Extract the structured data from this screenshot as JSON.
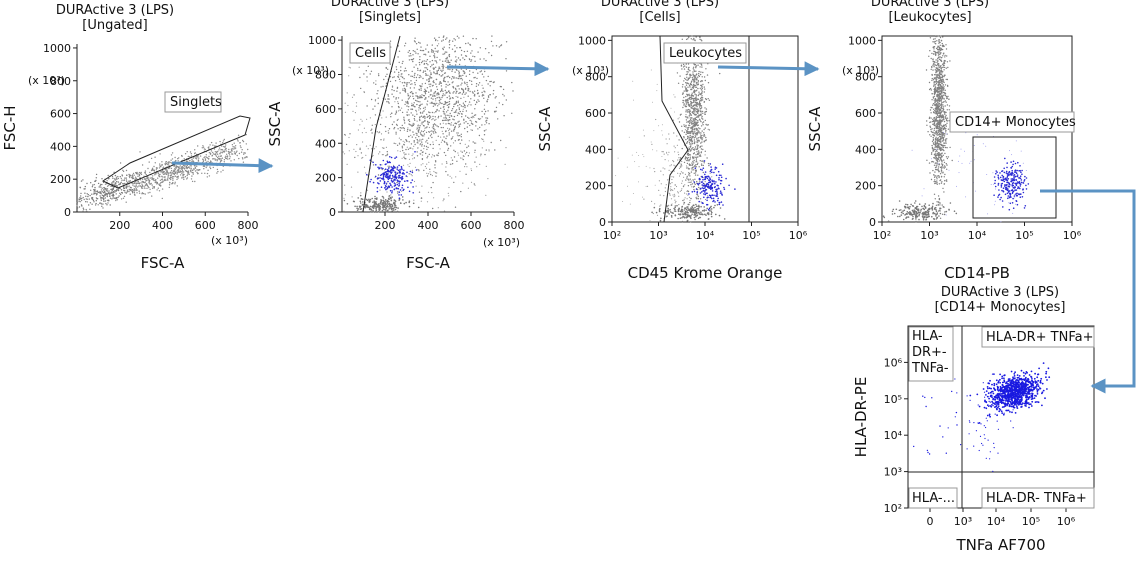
{
  "chart_data": [
    {
      "type": "scatter",
      "title": "DURActive 3 (LPS)",
      "subtitle": "[Ungated]",
      "xlabel": "FSC-A",
      "ylabel": "FSC-H",
      "x_scale": "linear",
      "y_scale": "linear",
      "xlim": [
        0,
        800
      ],
      "ylim": [
        0,
        1024
      ],
      "xticks": [
        "200",
        "400",
        "600",
        "800"
      ],
      "yticks": [
        "0",
        "200",
        "400",
        "600",
        "800",
        "1000"
      ],
      "x_multiplier": "(x 10³)",
      "y_multiplier": "(x 10³)",
      "gates": [
        {
          "label": "Singlets",
          "type": "polygon"
        }
      ],
      "clusters": [
        {
          "color": "#8a8a8a",
          "shape": "diagonal-band",
          "center": [
            380,
            280
          ]
        }
      ],
      "grid": false
    },
    {
      "type": "scatter",
      "title": "DURActive 3 (LPS)",
      "subtitle": "[Singlets]",
      "xlabel": "FSC-A",
      "ylabel": "SSC-A",
      "x_scale": "linear",
      "y_scale": "linear",
      "xlim": [
        0,
        800
      ],
      "ylim": [
        0,
        1024
      ],
      "xticks": [
        "200",
        "400",
        "600",
        "800"
      ],
      "yticks": [
        "0",
        "200",
        "400",
        "600",
        "800",
        "1000"
      ],
      "x_multiplier": "(x 10³)",
      "y_multiplier": "(x 10³)",
      "gates": [
        {
          "label": "Cells",
          "type": "polygon"
        }
      ],
      "clusters": [
        {
          "color": "#808080",
          "center": [
            450,
            600
          ]
        },
        {
          "color": "#2b2bd4",
          "center": [
            230,
            200
          ]
        },
        {
          "color": "#707070",
          "center": [
            260,
            50
          ]
        }
      ],
      "grid": false
    },
    {
      "type": "scatter",
      "title": "DURActive 3 (LPS)",
      "subtitle": "[Cells]",
      "xlabel": "CD45 Krome Orange",
      "ylabel": "SSC-A",
      "x_scale": "log",
      "y_scale": "linear",
      "xlim": [
        100,
        1000000
      ],
      "ylim": [
        0,
        1024
      ],
      "xticks": [
        "10²",
        "10³",
        "10⁴",
        "10⁵",
        "10⁶"
      ],
      "yticks": [
        "0",
        "200",
        "400",
        "600",
        "800",
        "1000"
      ],
      "y_multiplier": "(x 10³)",
      "gates": [
        {
          "label": "Leukocytes",
          "type": "polygon"
        }
      ],
      "clusters": [
        {
          "color": "#808080",
          "center": [
            5000,
            600
          ]
        },
        {
          "color": "#2b2bd4",
          "center": [
            13000,
            210
          ]
        },
        {
          "color": "#707070",
          "center": [
            3500,
            60
          ]
        }
      ],
      "grid": false
    },
    {
      "type": "scatter",
      "title": "DURActive 3 (LPS)",
      "subtitle": "[Leukocytes]",
      "xlabel": "CD14-PB",
      "ylabel": "SSC-A",
      "x_scale": "log",
      "y_scale": "linear",
      "xlim": [
        100,
        1000000
      ],
      "ylim": [
        0,
        1024
      ],
      "xticks": [
        "10²",
        "10³",
        "10⁴",
        "10⁵",
        "10⁶"
      ],
      "yticks": [
        "0",
        "200",
        "400",
        "600",
        "800",
        "1000"
      ],
      "y_multiplier": "(x 10³)",
      "gates": [
        {
          "label": "CD14+ Monocytes",
          "type": "rectangle"
        }
      ],
      "clusters": [
        {
          "color": "#808080",
          "center": [
            1200,
            650
          ]
        },
        {
          "color": "#2b2bd4",
          "center": [
            35000,
            210
          ]
        },
        {
          "color": "#808080",
          "center": [
            400,
            60
          ]
        }
      ],
      "grid": false
    },
    {
      "type": "scatter",
      "title": "DURActive 3 (LPS)",
      "subtitle": "[CD14+ Monocytes]",
      "xlabel": "TNFa AF700",
      "ylabel": "HLA-DR-PE",
      "x_scale": "biexponential",
      "y_scale": "log",
      "ylim": [
        100,
        10000000
      ],
      "xticks": [
        "0",
        "10³",
        "10⁴",
        "10⁵",
        "10⁶"
      ],
      "yticks": [
        "10²",
        "10³",
        "10⁴",
        "10⁵",
        "10⁶"
      ],
      "quadrants": [
        {
          "label": "HLA-DR+ TNFa-",
          "position": "top-left"
        },
        {
          "label": "HLA-DR+ TNFa+",
          "position": "top-right"
        },
        {
          "label": "HLA-...",
          "position": "bottom-left"
        },
        {
          "label": "HLA-DR- TNFa+",
          "position": "bottom-right"
        }
      ],
      "clusters": [
        {
          "color": "#1a1ae0",
          "center": [
            25000,
            150000
          ]
        }
      ],
      "grid": false
    }
  ]
}
